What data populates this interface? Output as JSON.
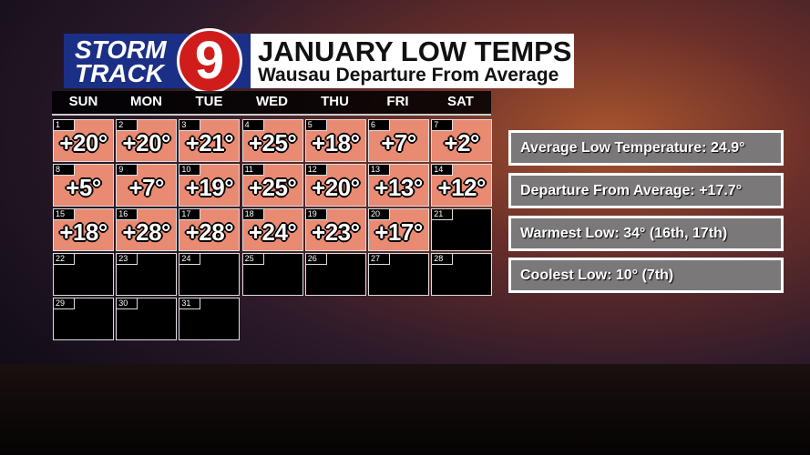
{
  "logo": {
    "line1": "STORM",
    "line2": "TRACK",
    "number": "9"
  },
  "header": {
    "title": "JANUARY LOW TEMPS",
    "subtitle": "Wausau Departure From Average"
  },
  "calendar": {
    "weekdays": [
      "SUN",
      "MON",
      "TUE",
      "WED",
      "THU",
      "FRI",
      "SAT"
    ],
    "days": [
      {
        "day": "1",
        "value": "+20°"
      },
      {
        "day": "2",
        "value": "+20°"
      },
      {
        "day": "3",
        "value": "+21°"
      },
      {
        "day": "4",
        "value": "+25°"
      },
      {
        "day": "5",
        "value": "+18°"
      },
      {
        "day": "6",
        "value": "+7°"
      },
      {
        "day": "7",
        "value": "+2°"
      },
      {
        "day": "8",
        "value": "+5°"
      },
      {
        "day": "9",
        "value": "+7°"
      },
      {
        "day": "10",
        "value": "+19°"
      },
      {
        "day": "11",
        "value": "+25°"
      },
      {
        "day": "12",
        "value": "+20°"
      },
      {
        "day": "13",
        "value": "+13°"
      },
      {
        "day": "14",
        "value": "+12°"
      },
      {
        "day": "15",
        "value": "+18°"
      },
      {
        "day": "16",
        "value": "+28°"
      },
      {
        "day": "17",
        "value": "+28°"
      },
      {
        "day": "18",
        "value": "+24°"
      },
      {
        "day": "19",
        "value": "+23°"
      },
      {
        "day": "20",
        "value": "+17°"
      },
      {
        "day": "21"
      },
      {
        "day": "22"
      },
      {
        "day": "23"
      },
      {
        "day": "24"
      },
      {
        "day": "25"
      },
      {
        "day": "26"
      },
      {
        "day": "27"
      },
      {
        "day": "28"
      },
      {
        "day": "29"
      },
      {
        "day": "30"
      },
      {
        "day": "31"
      }
    ]
  },
  "stats": [
    "Average Low Temperature: 24.9°",
    "Departure From Average: +17.7°",
    "Warmest Low: 34° (16th, 17th)",
    "Coolest Low: 10° (7th)"
  ]
}
